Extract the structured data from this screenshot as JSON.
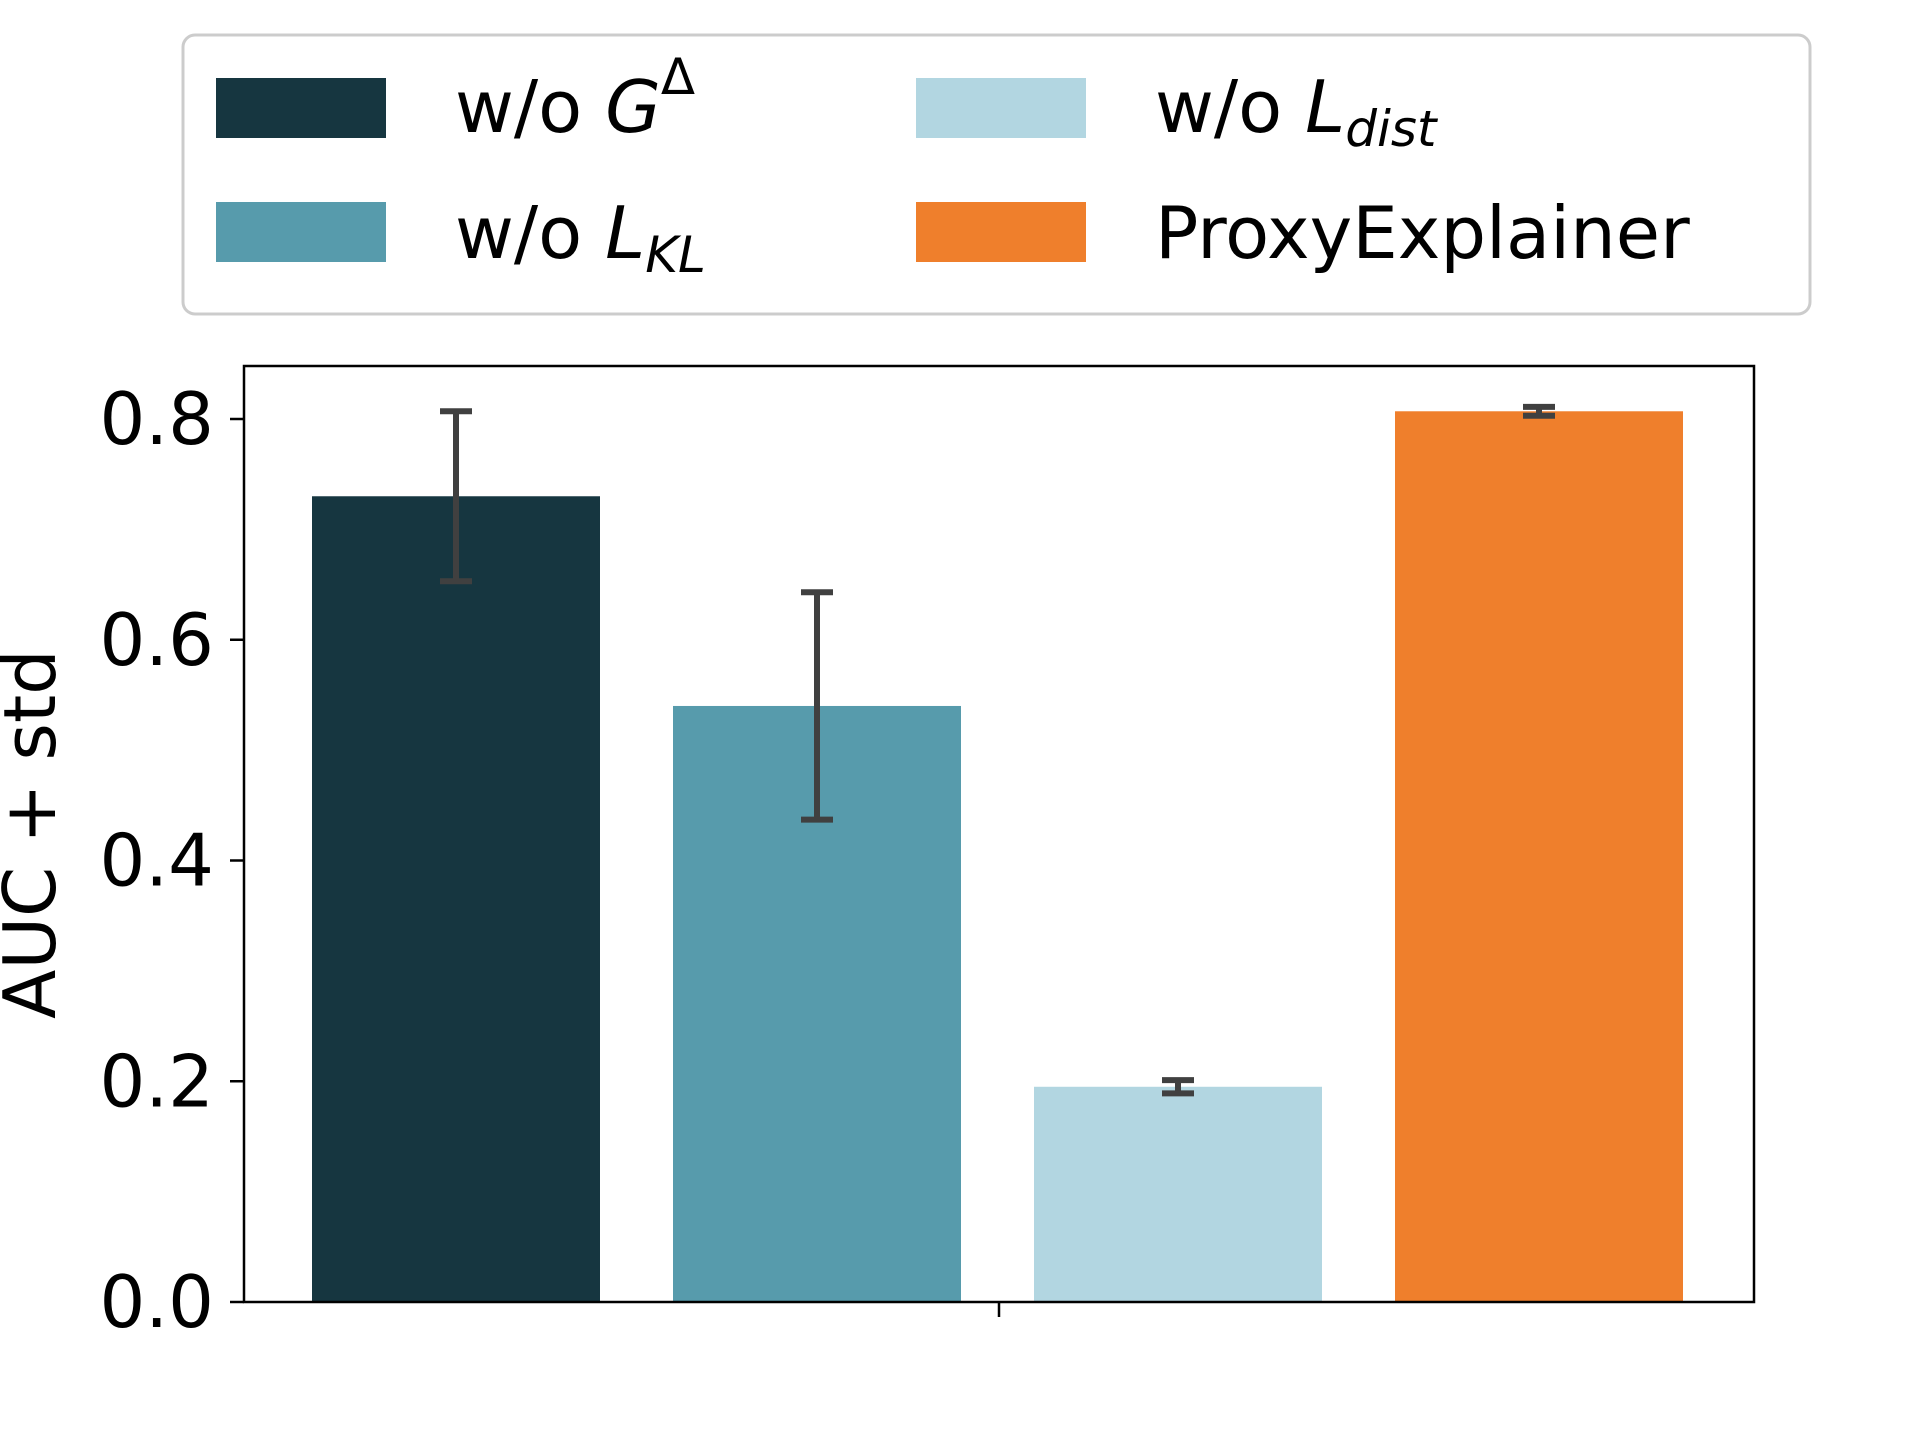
{
  "chart_data": {
    "type": "bar",
    "title": "",
    "xlabel": "",
    "ylabel": "AUC + std",
    "ylim": [
      0.0,
      0.85
    ],
    "yticks": [
      0.0,
      0.2,
      0.4,
      0.6,
      0.8
    ],
    "ytick_labels": [
      "0.0",
      "0.2",
      "0.4",
      "0.6",
      "0.8"
    ],
    "grid": false,
    "legend_position": "top, above plot, 2 columns",
    "series": [
      {
        "name": "w/o G^Δ",
        "value": 0.73,
        "std": 0.077,
        "color": "#163640"
      },
      {
        "name": "w/o L_KL",
        "value": 0.54,
        "std": 0.103,
        "color": "#579bac"
      },
      {
        "name": "w/o L_dist",
        "value": 0.195,
        "std": 0.006,
        "color": "#b2d6e1"
      },
      {
        "name": "ProxyExplainer",
        "value": 0.807,
        "std": 0.004,
        "color": "#ef7f2c"
      }
    ],
    "error_bar_color": "#404040"
  },
  "legend": {
    "items": [
      {
        "prefix": "w/o ",
        "sym": "G",
        "sup": "Δ",
        "sub": ""
      },
      {
        "prefix": "w/o ",
        "sym": "L",
        "sup": "",
        "sub": "KL"
      },
      {
        "prefix": "w/o ",
        "sym": "L",
        "sup": "",
        "sub": "dist"
      },
      {
        "prefix": "ProxyExplainer",
        "sym": "",
        "sup": "",
        "sub": ""
      }
    ]
  }
}
